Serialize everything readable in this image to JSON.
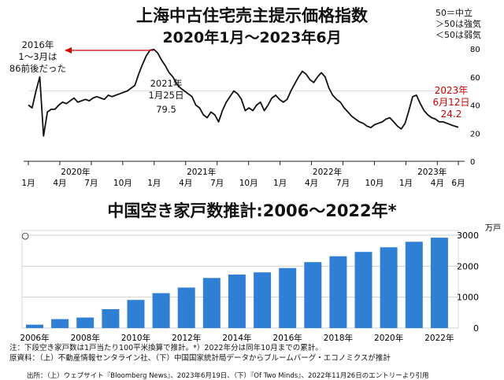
{
  "charts": {
    "line": {
      "title": "上海中古住宅売主提示価格指数",
      "subtitle": "2020年1月〜2023年6月",
      "legend": [
        "50＝中立",
        "＞50は強気",
        "＜50は弱気"
      ]
    },
    "bar": {
      "title": "中国空き家戸数推計:2006〜2022年*",
      "unit": "万戸",
      "marker_symbol": "○"
    }
  },
  "notes": {
    "line1": "注：下段空き家戸数は1戸当たり100平米換算で推計。*）2022年分は同年10月までの累計。",
    "line2": "原資料：（上）不動産情報センタライン社、（下）中国国家統計局データからブルームバーグ・エコノミクスが推計",
    "source": "出所：（上）ウェブサイト『Bloomberg News』、2023年6月19日、（下）『Of Two Minds』、2022年11月26日のエントリーより引用"
  },
  "colors": {
    "line": "#111111",
    "bar": "#2f80d5",
    "annotation_red": "#cc0000",
    "grid": "#cfcfcf"
  },
  "chart_data": [
    {
      "type": "line",
      "title": "上海中古住宅売主提示価格指数",
      "subtitle": "2020年1月〜2023年6月",
      "ylim": [
        0,
        80
      ],
      "y_ticks": [
        "0",
        "20",
        "40",
        "60",
        "80"
      ],
      "x_tick_labels": [
        "1月",
        "4月",
        "7月",
        "10月",
        "1月",
        "4月",
        "7月",
        "10月",
        "1月",
        "4月",
        "7月",
        "10月",
        "1月",
        "4月",
        "6月"
      ],
      "year_labels": [
        "2020年",
        "2021年",
        "2022年",
        "2023年"
      ],
      "reference_levels": [
        50
      ],
      "series": [
        {
          "values": [
            40,
            38,
            50,
            60,
            18,
            35,
            37,
            37,
            40,
            42,
            41,
            43,
            45,
            42,
            43,
            44,
            43,
            45,
            46,
            45,
            44,
            47,
            46,
            47,
            48,
            49,
            50,
            52,
            54,
            62,
            69,
            75,
            79,
            79.5,
            77,
            72,
            68,
            63,
            60,
            55,
            52,
            50,
            48,
            46,
            40,
            38,
            33,
            31,
            35,
            33,
            28,
            36,
            42,
            46,
            50,
            48,
            44,
            36,
            38,
            36,
            40,
            42,
            36,
            40,
            45,
            47,
            44,
            42,
            44,
            50,
            55,
            60,
            64,
            62,
            58,
            56,
            60,
            63,
            60,
            52,
            47,
            44,
            42,
            38,
            35,
            32,
            30,
            28,
            27,
            25,
            24,
            26,
            27,
            28,
            30,
            31,
            28,
            25,
            23,
            27,
            36,
            46,
            47,
            41,
            36,
            33,
            31,
            30,
            28,
            28,
            27,
            26,
            25,
            24.2
          ]
        }
      ],
      "annotations": [
        {
          "text": "2016年",
          "color": "#111111"
        },
        {
          "text": "1〜3月は",
          "color": "#111111"
        },
        {
          "text": "86前後だった",
          "color": "#111111"
        },
        {
          "text": "2021年",
          "color": "#111111"
        },
        {
          "text": "1月25日",
          "color": "#111111"
        },
        {
          "text": "79.5",
          "color": "#111111"
        },
        {
          "text": "2023年",
          "color": "#cc0000"
        },
        {
          "text": "6月12日",
          "color": "#cc0000"
        },
        {
          "text": "24.2",
          "color": "#cc0000"
        }
      ]
    },
    {
      "type": "bar",
      "title": "中国空き家戸数推計:2006〜2022年*",
      "unit": "万戸",
      "categories": [
        "2006年",
        "2007年",
        "2008年",
        "2009年",
        "2010年",
        "2011年",
        "2012年",
        "2013年",
        "2014年",
        "2015年",
        "2016年",
        "2017年",
        "2018年",
        "2019年",
        "2020年",
        "2021年",
        "2022年"
      ],
      "x_tick_labels": [
        "2006年",
        "2008年",
        "2010年",
        "2012年",
        "2014年",
        "2016年",
        "2018年",
        "2020年",
        "2022年"
      ],
      "values": [
        110,
        290,
        340,
        610,
        910,
        1130,
        1310,
        1620,
        1730,
        1800,
        1940,
        2130,
        2320,
        2460,
        2610,
        2790,
        2920
      ],
      "ylim": [
        0,
        3000
      ],
      "y_ticks": [
        "0",
        "1000",
        "2000",
        "3000"
      ]
    }
  ]
}
